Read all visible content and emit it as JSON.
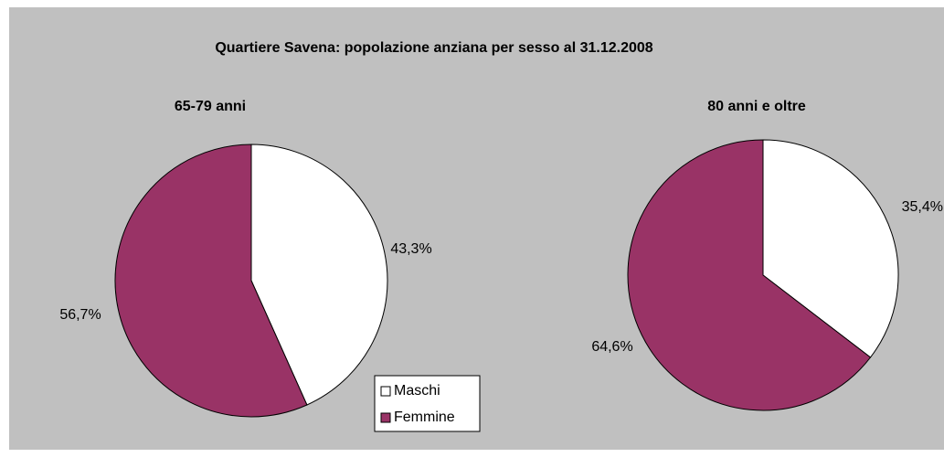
{
  "title": "Quartiere Savena: popolazione anziana per sesso al 31.12.2008",
  "chart_data": [
    {
      "type": "pie",
      "title": "65-79 anni",
      "categories": [
        "Maschi",
        "Femmine"
      ],
      "values": [
        43.3,
        56.7
      ],
      "value_labels": [
        "43,3%",
        "56,7%"
      ],
      "colors": [
        "#ffffff",
        "#993366"
      ],
      "legend": "center"
    },
    {
      "type": "pie",
      "title": "80 anni e oltre",
      "categories": [
        "Maschi",
        "Femmine"
      ],
      "values": [
        35.4,
        64.6
      ],
      "value_labels": [
        "35,4%",
        "64,6%"
      ],
      "colors": [
        "#ffffff",
        "#993366"
      ]
    }
  ]
}
